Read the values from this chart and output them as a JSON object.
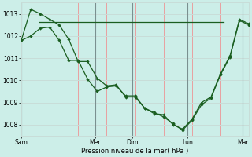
{
  "background_color": "#cceee8",
  "grid_color_h": "#c8ddd8",
  "grid_color_v": "#e8a0a0",
  "line_color": "#1a5e20",
  "xlabel": "Pression niveau de la mer( hPa )",
  "ylim": [
    1007.5,
    1013.5
  ],
  "yticks": [
    1008,
    1009,
    1010,
    1011,
    1012,
    1013
  ],
  "day_labels": [
    "Sam",
    "Mer",
    "Dim",
    "Lun",
    "Mar"
  ],
  "day_x": [
    0.0,
    2.33,
    3.5,
    5.25,
    7.0
  ],
  "n_vcols": 8,
  "series1": [
    1011.8,
    1013.2,
    1013.0,
    1012.75,
    1012.5,
    1011.85,
    1010.85,
    1010.85,
    1010.1,
    1009.75,
    1009.8,
    1009.25,
    1009.25,
    1008.75,
    1008.5,
    1008.45,
    1008.0,
    1007.8,
    1008.25,
    1009.0,
    1009.25,
    1010.3,
    1011.1,
    1012.75,
    1012.55
  ],
  "series2": [
    1011.8,
    1012.0,
    1012.35,
    1012.4,
    1011.8,
    1010.9,
    1010.9,
    1010.05,
    1009.5,
    1009.7,
    1009.75,
    1009.3,
    1009.3,
    1008.75,
    1008.55,
    1008.35,
    1008.05,
    1007.75,
    1008.2,
    1008.9,
    1009.2,
    1010.25,
    1011.05,
    1012.7,
    1012.5
  ],
  "flat_y": 1012.62,
  "flat_x_start": 0.58,
  "flat_x_end": 6.4,
  "n_points": 25,
  "xlim": [
    0.0,
    7.2
  ]
}
